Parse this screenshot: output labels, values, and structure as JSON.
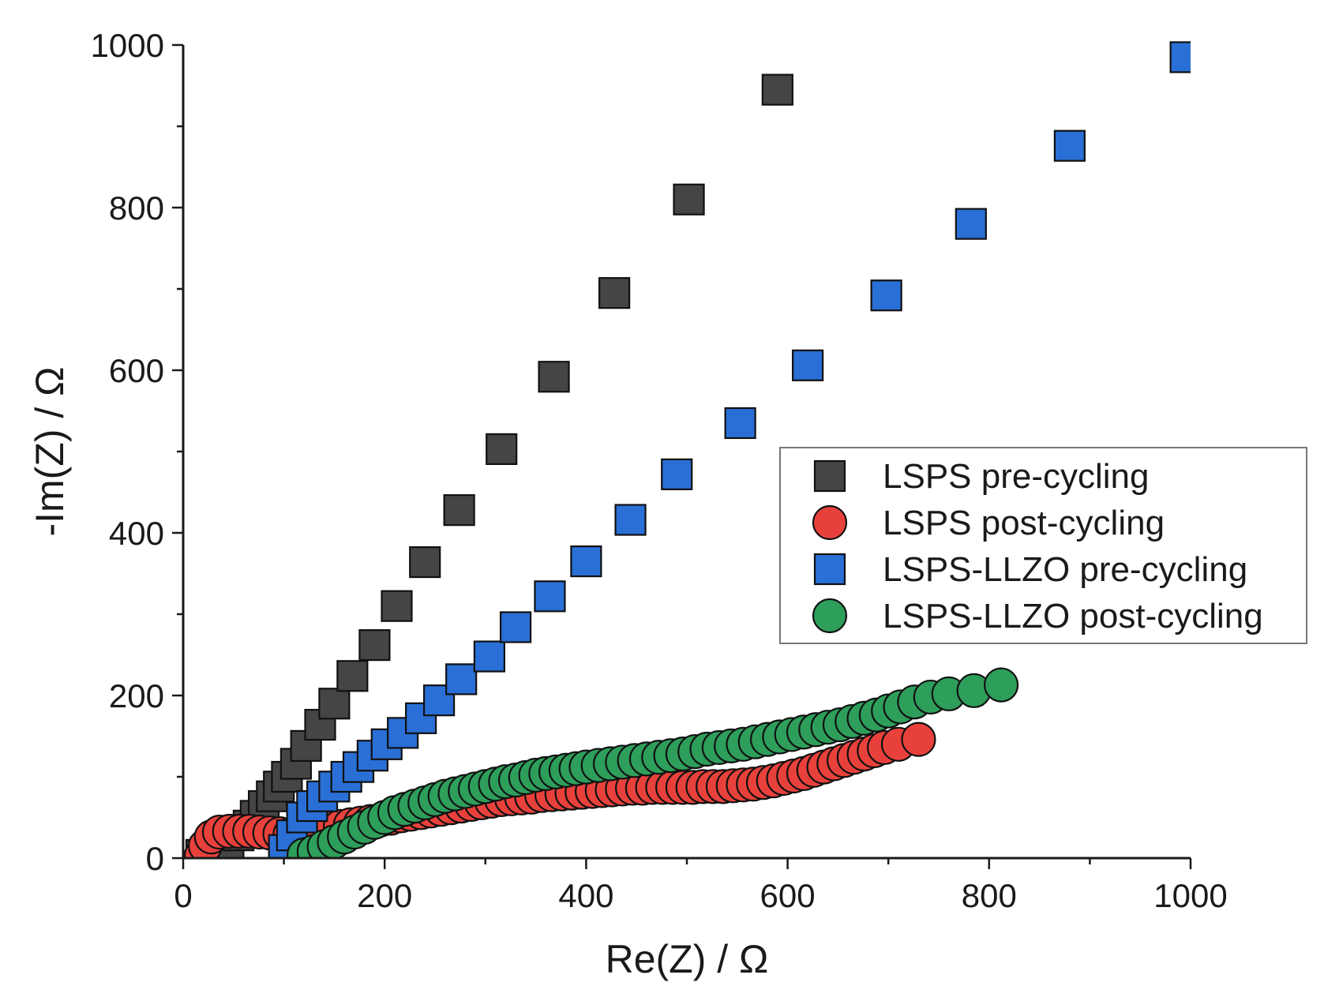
{
  "chart_data": {
    "type": "scatter",
    "title": "",
    "xlabel": "Re(Z) / Ω",
    "ylabel": "-Im(Z) / Ω",
    "xlim": [
      0,
      1000
    ],
    "ylim": [
      0,
      1000
    ],
    "xticks": [
      0,
      200,
      400,
      600,
      800,
      1000
    ],
    "yticks": [
      0,
      200,
      400,
      600,
      800,
      1000
    ],
    "xtick_labels": [
      "0",
      "200",
      "400",
      "600",
      "800",
      "1000"
    ],
    "ytick_labels": [
      "0",
      "200",
      "400",
      "600",
      "800",
      "1000"
    ],
    "grid": false,
    "legend_position": "center-right",
    "series": [
      {
        "name": "LSPS pre-cycling",
        "marker": "square",
        "color": "#454545",
        "points": [
          [
            18,
            4
          ],
          [
            25,
            8
          ],
          [
            35,
            12
          ],
          [
            45,
            18
          ],
          [
            55,
            28
          ],
          [
            65,
            40
          ],
          [
            72,
            52
          ],
          [
            80,
            64
          ],
          [
            88,
            76
          ],
          [
            95,
            88
          ],
          [
            103,
            100
          ],
          [
            112,
            116
          ],
          [
            122,
            138
          ],
          [
            136,
            164
          ],
          [
            150,
            190
          ],
          [
            168,
            224
          ],
          [
            190,
            262
          ],
          [
            212,
            310
          ],
          [
            240,
            364
          ],
          [
            274,
            428
          ],
          [
            316,
            503
          ],
          [
            368,
            592
          ],
          [
            428,
            695
          ],
          [
            502,
            810
          ],
          [
            590,
            945
          ]
        ]
      },
      {
        "name": "LSPS post-cycling",
        "marker": "circle",
        "color": "#e8413c",
        "points": [
          [
            18,
            3
          ],
          [
            22,
            15
          ],
          [
            28,
            26
          ],
          [
            36,
            32
          ],
          [
            46,
            33
          ],
          [
            56,
            33
          ],
          [
            66,
            33
          ],
          [
            76,
            32
          ],
          [
            86,
            31
          ],
          [
            96,
            30
          ],
          [
            106,
            29
          ],
          [
            116,
            30
          ],
          [
            126,
            32
          ],
          [
            136,
            35
          ],
          [
            146,
            37
          ],
          [
            156,
            39
          ],
          [
            166,
            41
          ],
          [
            176,
            43
          ],
          [
            186,
            45
          ],
          [
            196,
            47
          ],
          [
            206,
            49
          ],
          [
            216,
            52
          ],
          [
            226,
            54
          ],
          [
            236,
            56
          ],
          [
            246,
            58
          ],
          [
            256,
            60
          ],
          [
            266,
            62
          ],
          [
            276,
            64
          ],
          [
            286,
            66
          ],
          [
            296,
            68
          ],
          [
            306,
            70
          ],
          [
            316,
            72
          ],
          [
            326,
            73
          ],
          [
            336,
            74
          ],
          [
            346,
            75
          ],
          [
            356,
            77
          ],
          [
            366,
            78
          ],
          [
            376,
            79
          ],
          [
            386,
            80
          ],
          [
            396,
            81
          ],
          [
            406,
            82
          ],
          [
            416,
            83
          ],
          [
            426,
            84
          ],
          [
            436,
            85
          ],
          [
            446,
            86
          ],
          [
            456,
            86
          ],
          [
            466,
            87
          ],
          [
            476,
            87
          ],
          [
            486,
            87
          ],
          [
            496,
            87
          ],
          [
            506,
            87
          ],
          [
            516,
            88
          ],
          [
            526,
            88
          ],
          [
            536,
            88
          ],
          [
            546,
            89
          ],
          [
            556,
            90
          ],
          [
            566,
            91
          ],
          [
            576,
            93
          ],
          [
            586,
            95
          ],
          [
            596,
            98
          ],
          [
            606,
            101
          ],
          [
            616,
            104
          ],
          [
            626,
            108
          ],
          [
            636,
            112
          ],
          [
            646,
            116
          ],
          [
            656,
            120
          ],
          [
            666,
            124
          ],
          [
            676,
            128
          ],
          [
            686,
            132
          ],
          [
            696,
            136
          ],
          [
            710,
            140
          ],
          [
            730,
            146
          ]
        ]
      },
      {
        "name": "LSPS-LLZO pre-cycling",
        "marker": "square",
        "color": "#2a6fd6",
        "points": [
          [
            100,
            10
          ],
          [
            108,
            28
          ],
          [
            118,
            50
          ],
          [
            128,
            64
          ],
          [
            138,
            76
          ],
          [
            150,
            88
          ],
          [
            162,
            100
          ],
          [
            174,
            112
          ],
          [
            188,
            126
          ],
          [
            202,
            140
          ],
          [
            218,
            154
          ],
          [
            236,
            172
          ],
          [
            254,
            194
          ],
          [
            276,
            220
          ],
          [
            304,
            248
          ],
          [
            330,
            284
          ],
          [
            364,
            322
          ],
          [
            400,
            365
          ],
          [
            444,
            416
          ],
          [
            490,
            472
          ],
          [
            553,
            535
          ],
          [
            620,
            606
          ],
          [
            698,
            692
          ],
          [
            782,
            780
          ],
          [
            880,
            876
          ],
          [
            995,
            985
          ]
        ]
      },
      {
        "name": "LSPS-LLZO post-cycling",
        "marker": "circle",
        "color": "#2e9e5b",
        "points": [
          [
            120,
            4
          ],
          [
            130,
            8
          ],
          [
            140,
            14
          ],
          [
            150,
            20
          ],
          [
            160,
            26
          ],
          [
            170,
            32
          ],
          [
            180,
            38
          ],
          [
            190,
            44
          ],
          [
            200,
            50
          ],
          [
            210,
            56
          ],
          [
            220,
            60
          ],
          [
            230,
            64
          ],
          [
            240,
            68
          ],
          [
            250,
            72
          ],
          [
            260,
            76
          ],
          [
            270,
            79
          ],
          [
            280,
            82
          ],
          [
            290,
            85
          ],
          [
            300,
            88
          ],
          [
            310,
            91
          ],
          [
            320,
            94
          ],
          [
            330,
            96
          ],
          [
            340,
            99
          ],
          [
            350,
            102
          ],
          [
            360,
            104
          ],
          [
            370,
            106
          ],
          [
            380,
            108
          ],
          [
            390,
            110
          ],
          [
            400,
            112
          ],
          [
            412,
            114
          ],
          [
            424,
            116
          ],
          [
            436,
            118
          ],
          [
            448,
            120
          ],
          [
            460,
            122
          ],
          [
            472,
            124
          ],
          [
            484,
            126
          ],
          [
            496,
            128
          ],
          [
            508,
            131
          ],
          [
            520,
            134
          ],
          [
            532,
            136
          ],
          [
            544,
            138
          ],
          [
            556,
            140
          ],
          [
            568,
            143
          ],
          [
            580,
            146
          ],
          [
            592,
            149
          ],
          [
            604,
            152
          ],
          [
            616,
            155
          ],
          [
            628,
            158
          ],
          [
            640,
            161
          ],
          [
            652,
            164
          ],
          [
            664,
            168
          ],
          [
            676,
            172
          ],
          [
            688,
            176
          ],
          [
            700,
            181
          ],
          [
            712,
            186
          ],
          [
            726,
            192
          ],
          [
            742,
            198
          ],
          [
            760,
            202
          ],
          [
            785,
            206
          ],
          [
            812,
            213
          ]
        ]
      }
    ]
  }
}
